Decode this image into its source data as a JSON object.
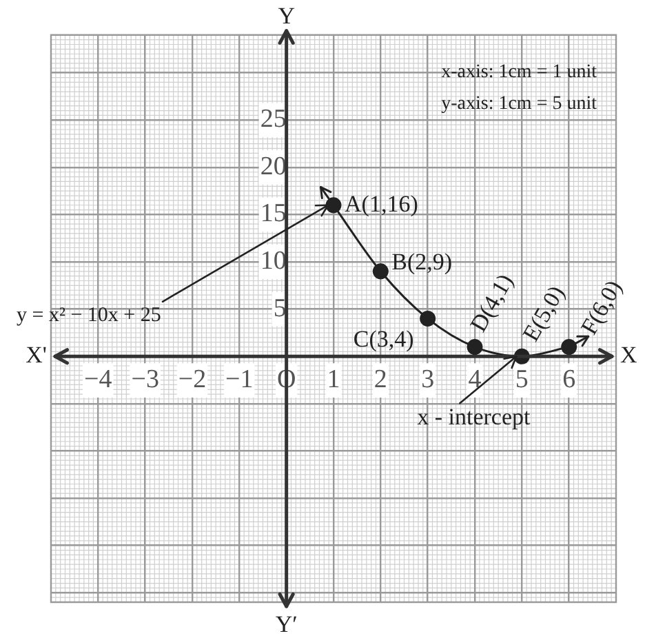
{
  "chart_data": {
    "type": "line",
    "xlabel": "X",
    "ylabel": "Y",
    "x": [
      1,
      2,
      3,
      4,
      5,
      6
    ],
    "series": [
      {
        "color": "#222222",
        "values": [
          16,
          9,
          4,
          1,
          0,
          1
        ]
      }
    ],
    "xlim": [
      -5,
      7
    ],
    "ylim": [
      -26,
      34
    ],
    "xticks": [
      {
        "value": -4,
        "label": "−4"
      },
      {
        "value": -3,
        "label": "−3"
      },
      {
        "value": -2,
        "label": "−2"
      },
      {
        "value": -1,
        "label": "−1"
      },
      {
        "value": 0,
        "label": "O"
      },
      1,
      2,
      3,
      4,
      5,
      6
    ],
    "yticks": [
      {
        "value": -25,
        "label": null
      },
      {
        "value": -20,
        "label": null
      },
      {
        "value": -15,
        "label": null
      },
      {
        "value": -10,
        "label": null
      },
      {
        "value": -5,
        "label": null
      },
      5,
      10,
      15,
      20,
      25,
      {
        "value": 30,
        "label": null
      }
    ],
    "grid": true,
    "marker": "circle",
    "line_style": "solid",
    "annotations": [
      "x-axis: 1cm = 1 unit",
      "y-axis: 1cm = 5 unit",
      {
        "text": "y = x² − 10x + 25",
        "x": 1,
        "y": 16
      },
      {
        "text": "x - intercept",
        "x": 5,
        "y": 0
      },
      {
        "text": "A(1,16)",
        "x": 1,
        "y": 16
      },
      {
        "text": "B(2,9)",
        "x": 2,
        "y": 9
      },
      {
        "text": "C(3,4)",
        "x": 3,
        "y": 4
      },
      {
        "text": "D(4,1)",
        "x": 4,
        "y": 1
      },
      {
        "text": "E(5,0)",
        "x": 5,
        "y": 0
      },
      {
        "text": "F(6,0)",
        "x": 6,
        "y": 1
      },
      "X'",
      "Y′"
    ]
  }
}
